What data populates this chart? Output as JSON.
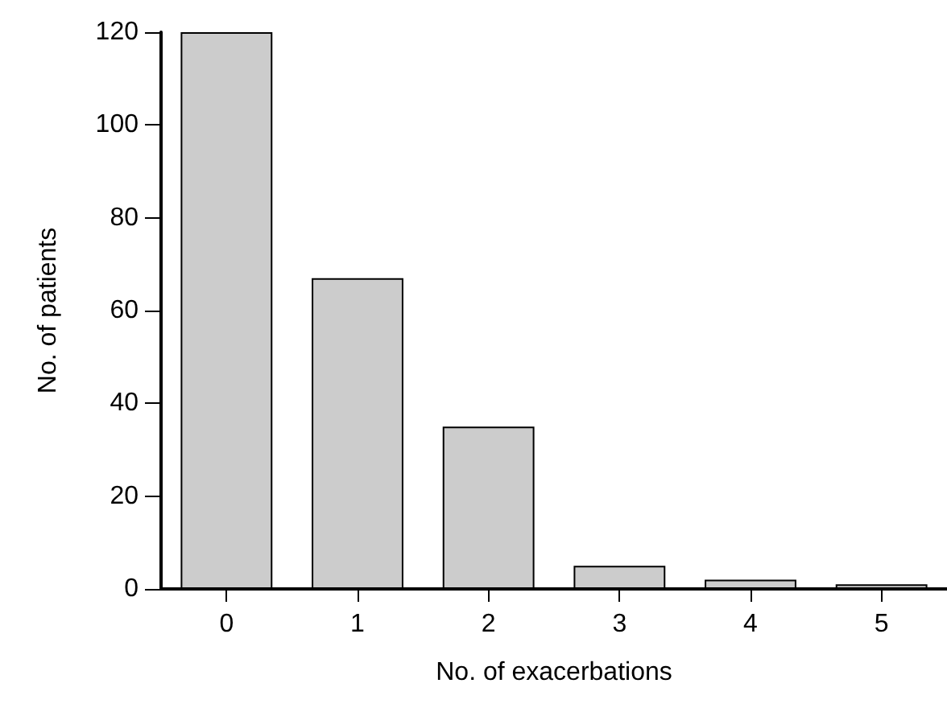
{
  "chart_data": {
    "type": "bar",
    "xlabel": "No. of exacerbations",
    "ylabel": "No. of patients",
    "categories": [
      "0",
      "1",
      "2",
      "3",
      "4",
      "5"
    ],
    "values": [
      120,
      67,
      35,
      5,
      2,
      1
    ],
    "color": "#cccccc",
    "ylim": [
      0,
      120
    ],
    "yticks": [
      0,
      20,
      40,
      60,
      80,
      100,
      120
    ],
    "grid": false
  }
}
